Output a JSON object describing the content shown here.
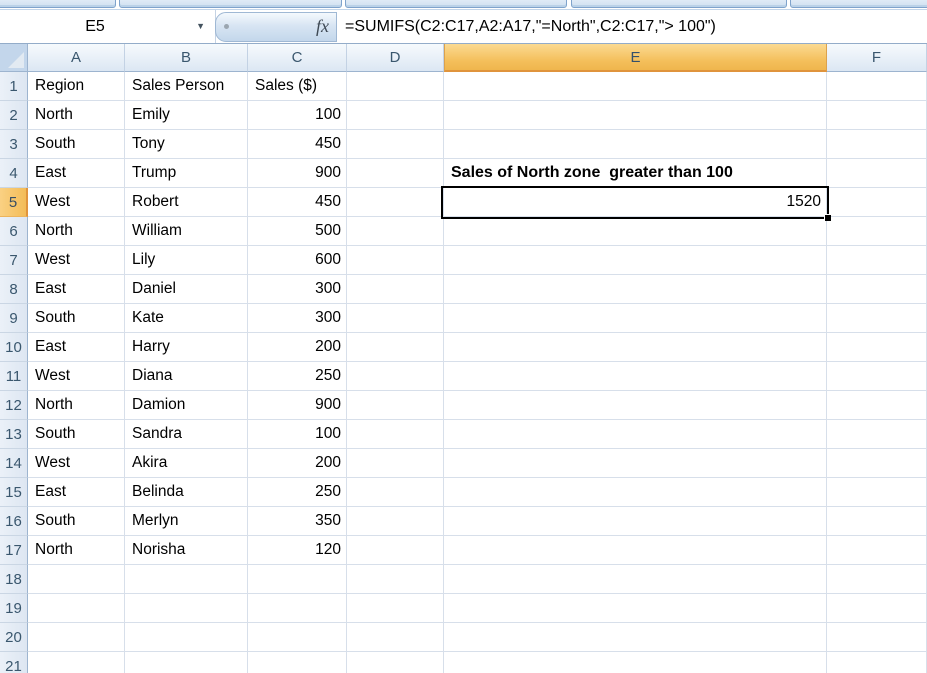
{
  "formula_bar": {
    "name_box": "E5",
    "dropdown_icon": "▼",
    "fx_label": "fx",
    "formula": "=SUMIFS(C2:C17,A2:A17,\"=North\",C2:C17,\"> 100\")"
  },
  "column_headers": [
    "A",
    "B",
    "C",
    "D",
    "E",
    "F"
  ],
  "row_numbers": [
    "1",
    "2",
    "3",
    "4",
    "5",
    "6",
    "7",
    "8",
    "9",
    "10",
    "11",
    "12",
    "13",
    "14",
    "15",
    "16",
    "17",
    "18",
    "19",
    "20",
    "21"
  ],
  "table": {
    "headers": {
      "region": "Region",
      "person": "Sales Person",
      "sales": "Sales ($)"
    },
    "rows": [
      {
        "region": "North",
        "person": "Emily",
        "sales": "100"
      },
      {
        "region": "South",
        "person": "Tony",
        "sales": "450"
      },
      {
        "region": "East",
        "person": "Trump",
        "sales": "900"
      },
      {
        "region": "West",
        "person": "Robert",
        "sales": "450"
      },
      {
        "region": "North",
        "person": "William",
        "sales": "500"
      },
      {
        "region": "West",
        "person": "Lily",
        "sales": "600"
      },
      {
        "region": "East",
        "person": "Daniel",
        "sales": "300"
      },
      {
        "region": "South",
        "person": "Kate",
        "sales": "300"
      },
      {
        "region": "East",
        "person": "Harry",
        "sales": "200"
      },
      {
        "region": "West",
        "person": "Diana",
        "sales": "250"
      },
      {
        "region": "North",
        "person": "Damion",
        "sales": "900"
      },
      {
        "region": "South",
        "person": "Sandra",
        "sales": "100"
      },
      {
        "region": "West",
        "person": "Akira",
        "sales": "200"
      },
      {
        "region": "East",
        "person": "Belinda",
        "sales": "250"
      },
      {
        "region": "South",
        "person": "Merlyn",
        "sales": "350"
      },
      {
        "region": "North",
        "person": "Norisha",
        "sales": "120"
      }
    ]
  },
  "summary": {
    "title": "Sales of North zone  greater than 100",
    "value": "1520"
  },
  "selection": {
    "cell": "E5",
    "highlight_color": "#F3BE59",
    "header_highlight_border": "#E0943C",
    "selection_border_color": "#000000",
    "header_text_color": "#3A576E",
    "grid_line_color": "#D7DFEA"
  }
}
